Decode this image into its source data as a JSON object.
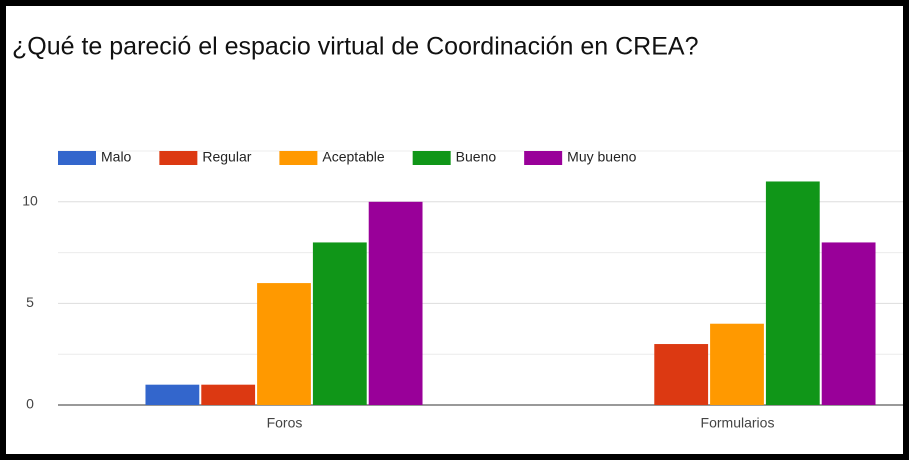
{
  "chart_data": {
    "type": "bar",
    "title": "¿Qué te pareció el espacio virtual de Coordinación en CREA?",
    "categories": [
      "Foros",
      "Formularios"
    ],
    "series": [
      {
        "name": "Malo",
        "color": "#3366cc",
        "values": [
          1,
          0
        ]
      },
      {
        "name": "Regular",
        "color": "#dc3912",
        "values": [
          1,
          3
        ]
      },
      {
        "name": "Aceptable",
        "color": "#ff9900",
        "values": [
          6,
          4
        ]
      },
      {
        "name": "Bueno",
        "color": "#109618",
        "values": [
          8,
          11
        ]
      },
      {
        "name": "Muy bueno",
        "color": "#990099",
        "values": [
          10,
          8
        ]
      }
    ],
    "ylim": [
      0,
      12.5
    ],
    "yticks": [
      0,
      5,
      10
    ],
    "grid": true,
    "legend": "top"
  }
}
